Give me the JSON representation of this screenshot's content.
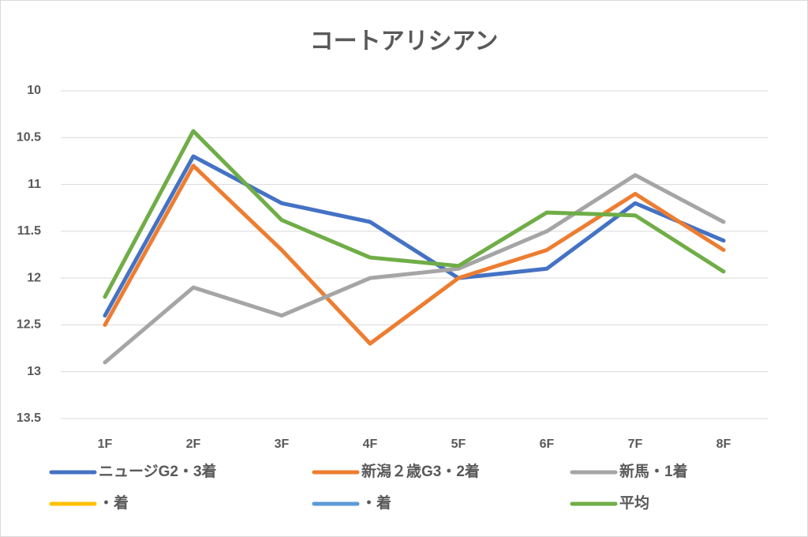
{
  "chart_data": {
    "type": "line",
    "title": "コートアリシアン",
    "categories": [
      "1F",
      "2F",
      "3F",
      "4F",
      "5F",
      "6F",
      "7F",
      "8F"
    ],
    "series": [
      {
        "name": "ニュージG2・3着",
        "color": "#4472c4",
        "values": [
          12.4,
          10.7,
          11.2,
          11.4,
          12.0,
          11.9,
          11.2,
          11.6
        ]
      },
      {
        "name": "新潟２歳G3・2着",
        "color": "#ed7d31",
        "values": [
          12.5,
          10.8,
          11.7,
          12.7,
          12.0,
          11.7,
          11.1,
          11.7
        ]
      },
      {
        "name": "新馬・1着",
        "color": "#a5a5a5",
        "values": [
          12.9,
          12.1,
          12.4,
          12.0,
          11.9,
          11.5,
          10.9,
          11.4
        ]
      },
      {
        "name": "・着",
        "color": "#ffc000",
        "values": [
          null,
          null,
          null,
          null,
          null,
          null,
          null,
          null
        ]
      },
      {
        "name": "・着",
        "color": "#5b9bd5",
        "values": [
          null,
          null,
          null,
          null,
          null,
          null,
          null,
          null
        ]
      },
      {
        "name": "平均",
        "color": "#70ad47",
        "values": [
          12.2,
          10.43,
          11.38,
          11.78,
          11.87,
          11.3,
          11.33,
          11.93
        ]
      }
    ],
    "ylim": [
      10,
      13.5
    ],
    "yticks": [
      10,
      10.5,
      11,
      11.5,
      12,
      12.5,
      13,
      13.5
    ],
    "y_reversed": true,
    "grid": true,
    "legend": "bottom"
  }
}
